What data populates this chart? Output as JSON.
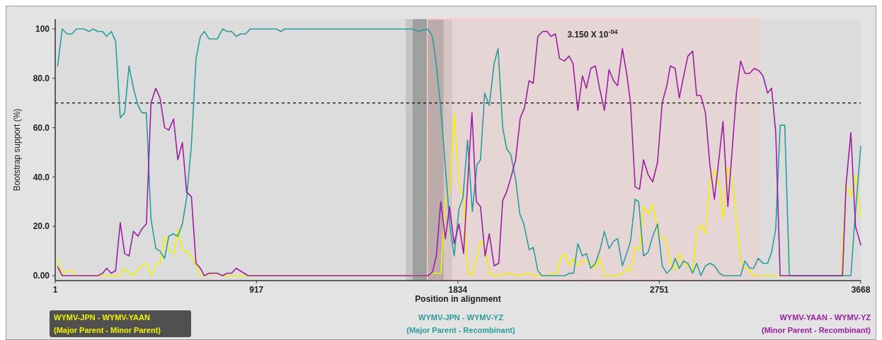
{
  "chart_data": {
    "type": "line",
    "xlabel": "Position in alignment",
    "ylabel": "Bootstrap support (%)",
    "xlim": [
      1,
      3668
    ],
    "xticks": [
      1,
      917,
      1834,
      2751,
      3668
    ],
    "ylim": [
      -2,
      104
    ],
    "yticks": [
      {
        "value": 0,
        "label": "0.00"
      },
      {
        "value": 20,
        "label": "20.0"
      },
      {
        "value": 40,
        "label": "40.0"
      },
      {
        "value": 60,
        "label": "60.0"
      },
      {
        "value": 80,
        "label": "80.0"
      },
      100
    ],
    "legend": "bottom",
    "line_style": "solid",
    "ref_lines": [
      {
        "axis": "y",
        "value": 70,
        "color": "#000000",
        "line_style": "dashed"
      }
    ],
    "bands": [
      {
        "axis": "x",
        "from": 1596,
        "to": 1807,
        "color": "#c4c4c4"
      },
      {
        "axis": "x",
        "from": 1628,
        "to": 1769,
        "color": "#a0a0a0"
      },
      {
        "axis": "x",
        "from": 1695,
        "to": 3198,
        "color": "#ffc8c8",
        "label": "3.150 X 10$^{-04}$"
      }
    ],
    "series": [
      {
        "name": "WYMV-JPN - WYMV-YAAN\n(Major Parent - Minor Parent)",
        "color": "#f2f200",
        "x": [
          12,
          33,
          55,
          76,
          93,
          292,
          317,
          337,
          357,
          378,
          416,
          437,
          459,
          478,
          499,
          518,
          540,
          559,
          580,
          599,
          621,
          642,
          662,
          728,
          763,
          1697,
          1718,
          1756,
          1777,
          1796,
          1817,
          1839,
          1860,
          1878,
          1898,
          1918,
          1937,
          1958,
          1977,
          1999,
          2074,
          2097,
          2159,
          2182,
          2246,
          2268,
          2284,
          2300,
          2319,
          2340,
          2358,
          2380,
          2401,
          2419,
          2438,
          2460,
          2479,
          2501,
          2561,
          2583,
          2604,
          2620,
          2641,
          2661,
          2679,
          2700,
          2721,
          2743,
          2764,
          2780,
          2801,
          2823,
          2842,
          2862,
          2881,
          2903,
          2921,
          2940,
          2961,
          2981,
          3002,
          3025,
          3041,
          3063,
          3084,
          3102,
          3121,
          3141,
          3162,
          3180,
          3580,
          3601,
          3623,
          3644,
          3668
        ],
        "values": [
          7,
          0,
          2,
          2,
          0,
          0,
          3,
          1,
          0,
          3,
          5,
          0,
          5,
          5,
          16,
          10.5,
          9,
          19,
          10,
          10,
          7.6,
          4,
          0,
          1,
          0,
          0,
          1,
          1,
          30,
          34,
          66,
          37,
          31.5,
          1,
          0,
          7,
          14,
          10.5,
          1,
          0,
          1,
          0,
          1,
          0,
          0,
          1,
          1,
          7,
          9,
          4,
          7,
          4,
          6,
          6,
          5,
          3,
          7,
          0,
          0,
          1,
          3,
          2,
          11.5,
          10.5,
          28,
          25,
          29,
          18,
          15,
          15,
          5,
          2.4,
          9,
          5,
          4,
          2,
          17.5,
          20.5,
          17,
          39,
          43,
          36,
          23,
          44,
          38,
          22.5,
          6,
          3,
          2,
          0,
          0,
          37,
          32,
          41,
          24
        ]
      },
      {
        "name": "WYMV-JPN - WYMV-YZ\n(Major Parent - Recombinant)",
        "color": "#2a9d9a",
        "x": [
          12,
          33,
          55,
          76,
          98,
          130,
          157,
          173,
          195,
          217,
          235,
          256,
          276,
          297,
          317,
          337,
          357,
          378,
          396,
          416,
          437,
          459,
          478,
          499,
          518,
          538,
          559,
          580,
          599,
          621,
          642,
          662,
          680,
          701,
          739,
          763,
          784,
          804,
          825,
          845,
          868,
          888,
          1009,
          1028,
          1046,
          1628,
          1654,
          1697,
          1718,
          1734,
          1756,
          1777,
          1798,
          1817,
          1839,
          1857,
          1878,
          1900,
          1921,
          1937,
          1956,
          1977,
          1999,
          2017,
          2038,
          2056,
          2075,
          2097,
          2116,
          2134,
          2159,
          2177,
          2198,
          2216,
          2321,
          2342,
          2361,
          2380,
          2401,
          2419,
          2439,
          2460,
          2481,
          2501,
          2522,
          2543,
          2561,
          2583,
          2604,
          2620,
          2641,
          2657,
          2679,
          2700,
          2721,
          2743,
          2764,
          2785,
          2807,
          2823,
          2842,
          2862,
          2881,
          2903,
          2921,
          2940,
          2961,
          2981,
          3002,
          3025,
          3041,
          3121,
          3141,
          3162,
          3180,
          3201,
          3223,
          3244,
          3262,
          3281,
          3301,
          3322,
          3343,
          3623,
          3639,
          3668
        ],
        "values": [
          85,
          100,
          98,
          98,
          100,
          100,
          99,
          100,
          99,
          99,
          97,
          99,
          95,
          64,
          66,
          85,
          76,
          69,
          66,
          66,
          23,
          11,
          10,
          7,
          16,
          17,
          16,
          21,
          31.5,
          53,
          88,
          97,
          99,
          96,
          96,
          100,
          99,
          99,
          97,
          98,
          98,
          100,
          100,
          99,
          100,
          100,
          99,
          100,
          97,
          87,
          68,
          44,
          20,
          8,
          27,
          31.5,
          55,
          26,
          45,
          47,
          74,
          69,
          86,
          92,
          60,
          51.5,
          49,
          39,
          25,
          21,
          10.5,
          11.5,
          2,
          0,
          0,
          1,
          1,
          13,
          8,
          9,
          3,
          5,
          10.5,
          18,
          11,
          14,
          15,
          4,
          9.5,
          14,
          31,
          30,
          8,
          9.5,
          16,
          21,
          4,
          1,
          3,
          7,
          3,
          6,
          5,
          1,
          5,
          0,
          4,
          5,
          4,
          1,
          0,
          0,
          6,
          3,
          3,
          7,
          5,
          5,
          9.5,
          19,
          61,
          61,
          0,
          0,
          20,
          52.5
        ]
      },
      {
        "name": "WYMV-YAAN - WYMV-YZ\n(Minor Parent - Recombinant)",
        "color": "#9c1ea3",
        "x": [
          12,
          33,
          195,
          217,
          235,
          256,
          276,
          297,
          317,
          337,
          357,
          378,
          396,
          416,
          437,
          459,
          478,
          499,
          518,
          540,
          559,
          580,
          599,
          621,
          642,
          662,
          680,
          701,
          739,
          763,
          784,
          804,
          825,
          879,
          1697,
          1718,
          1736,
          1756,
          1777,
          1796,
          1817,
          1839,
          1860,
          1878,
          1898,
          1918,
          1937,
          1958,
          1977,
          1999,
          2020,
          2038,
          2056,
          2076,
          2097,
          2118,
          2137,
          2158,
          2177,
          2198,
          2220,
          2241,
          2257,
          2278,
          2297,
          2319,
          2340,
          2358,
          2380,
          2401,
          2419,
          2439,
          2460,
          2479,
          2501,
          2522,
          2543,
          2561,
          2583,
          2604,
          2620,
          2641,
          2661,
          2679,
          2700,
          2721,
          2743,
          2764,
          2785,
          2801,
          2823,
          2842,
          2862,
          2881,
          2903,
          2921,
          2940,
          2961,
          2981,
          3002,
          3041,
          3063,
          3084,
          3102,
          3121,
          3141,
          3162,
          3183,
          3205,
          3223,
          3244,
          3262,
          3281,
          3301,
          3585,
          3601,
          3623,
          3644,
          3668
        ],
        "values": [
          3.6,
          0,
          0,
          1,
          3,
          1,
          2,
          21.5,
          9,
          8,
          18,
          16,
          19,
          21,
          70,
          76,
          72,
          60,
          59,
          63.5,
          47,
          54,
          34,
          32,
          5,
          3,
          0,
          1,
          1,
          0,
          1,
          1,
          3,
          0,
          0,
          1.4,
          8,
          30,
          15,
          28,
          13,
          21,
          9,
          37,
          66,
          30,
          28,
          8,
          17,
          4,
          5,
          30.5,
          34,
          40,
          47,
          64,
          68,
          79,
          78,
          97,
          99,
          99,
          97,
          98,
          88,
          87,
          89,
          86,
          67,
          81,
          76,
          84,
          85,
          76,
          67,
          83.5,
          79,
          77,
          92,
          81,
          70,
          36,
          35,
          47,
          41,
          38,
          46,
          70,
          77,
          85,
          84,
          72,
          81,
          89,
          91,
          73,
          73,
          66,
          45,
          31,
          62.5,
          28,
          52.5,
          74,
          87,
          82,
          82,
          84,
          83,
          81,
          74,
          76,
          58,
          0,
          0,
          37,
          58,
          20,
          12.5
        ]
      }
    ]
  }
}
